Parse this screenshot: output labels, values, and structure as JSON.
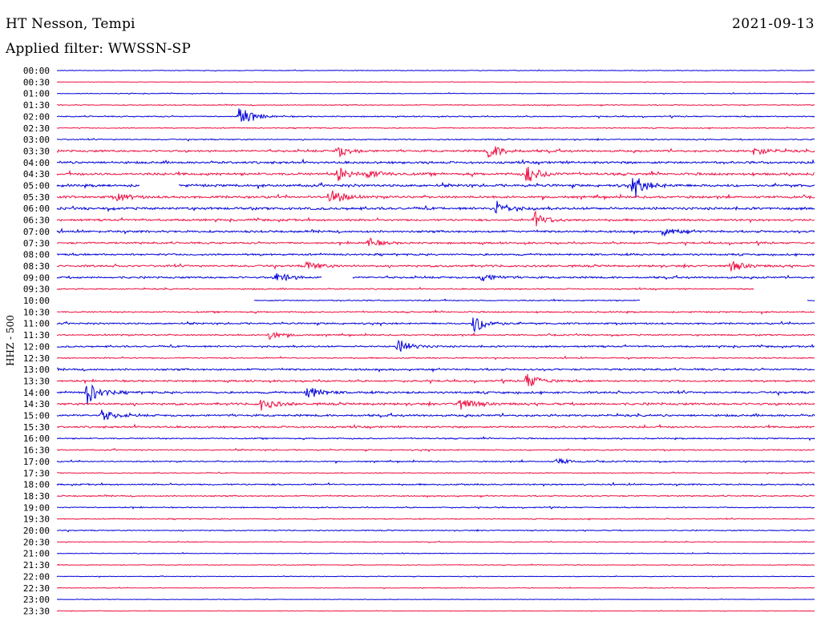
{
  "header": {
    "station": "HT Nesson, Tempi",
    "date": "2021-09-13",
    "filter": "Applied filter: WWSSN-SP"
  },
  "chart_data": {
    "type": "line",
    "title": "HT Nesson, Tempi",
    "subtitle": "Applied filter: WWSSN-SP",
    "ylabel": "HHZ - 500",
    "grid": false,
    "colors": [
      "#0000d8",
      "#ee1144"
    ],
    "times": [
      "00:00",
      "00:30",
      "01:00",
      "01:30",
      "02:00",
      "02:30",
      "03:00",
      "03:30",
      "04:00",
      "04:30",
      "05:00",
      "05:30",
      "06:00",
      "06:30",
      "07:00",
      "07:30",
      "08:00",
      "08:30",
      "09:00",
      "09:30",
      "10:00",
      "10:30",
      "11:00",
      "11:30",
      "12:00",
      "12:30",
      "13:00",
      "13:30",
      "14:00",
      "14:30",
      "15:00",
      "15:30",
      "16:00",
      "16:30",
      "17:00",
      "17:30",
      "18:00",
      "18:30",
      "19:00",
      "19:30",
      "20:00",
      "20:30",
      "21:00",
      "21:30",
      "22:00",
      "22:30",
      "23:00",
      "23:30"
    ],
    "noise": [
      0.3,
      0.3,
      0.35,
      0.45,
      0.55,
      0.5,
      0.55,
      1.0,
      1.1,
      1.2,
      1.2,
      1.1,
      1.2,
      1.0,
      1.0,
      0.9,
      0.9,
      1.0,
      0.9,
      0.6,
      0.55,
      0.7,
      0.8,
      0.7,
      0.8,
      0.6,
      0.9,
      0.9,
      1.0,
      1.1,
      1.0,
      0.9,
      0.6,
      0.6,
      0.6,
      0.45,
      0.7,
      0.6,
      0.5,
      0.5,
      0.5,
      0.4,
      0.35,
      0.35,
      0.3,
      0.3,
      0.25,
      0.25
    ],
    "events": [
      {
        "row": 4,
        "x": 0.24,
        "amp": 14
      },
      {
        "row": 7,
        "x": 0.37,
        "amp": 8
      },
      {
        "row": 7,
        "x": 0.57,
        "amp": 10
      },
      {
        "row": 7,
        "x": 0.92,
        "amp": 6
      },
      {
        "row": 9,
        "x": 0.37,
        "amp": 9
      },
      {
        "row": 9,
        "x": 0.41,
        "amp": 5
      },
      {
        "row": 9,
        "x": 0.62,
        "amp": 12
      },
      {
        "row": 10,
        "x": 0.76,
        "amp": 14
      },
      {
        "row": 11,
        "x": 0.36,
        "amp": 12
      },
      {
        "row": 11,
        "x": 0.08,
        "amp": 5
      },
      {
        "row": 12,
        "x": 0.58,
        "amp": 9
      },
      {
        "row": 13,
        "x": 0.63,
        "amp": 9
      },
      {
        "row": 14,
        "x": 0.8,
        "amp": 6
      },
      {
        "row": 15,
        "x": 0.41,
        "amp": 6
      },
      {
        "row": 17,
        "x": 0.33,
        "amp": 6
      },
      {
        "row": 17,
        "x": 0.89,
        "amp": 6
      },
      {
        "row": 18,
        "x": 0.29,
        "amp": 7
      },
      {
        "row": 18,
        "x": 0.56,
        "amp": 6
      },
      {
        "row": 22,
        "x": 0.55,
        "amp": 12
      },
      {
        "row": 23,
        "x": 0.28,
        "amp": 5
      },
      {
        "row": 24,
        "x": 0.45,
        "amp": 9
      },
      {
        "row": 27,
        "x": 0.62,
        "amp": 10
      },
      {
        "row": 28,
        "x": 0.04,
        "amp": 14
      },
      {
        "row": 28,
        "x": 0.33,
        "amp": 9
      },
      {
        "row": 29,
        "x": 0.27,
        "amp": 8
      },
      {
        "row": 29,
        "x": 0.53,
        "amp": 8
      },
      {
        "row": 30,
        "x": 0.06,
        "amp": 7
      },
      {
        "row": 34,
        "x": 0.66,
        "amp": 4
      }
    ],
    "gaps": [
      {
        "row": 10,
        "from": 0.11,
        "to": 0.16
      },
      {
        "row": 18,
        "from": 0.35,
        "to": 0.39
      },
      {
        "row": 19,
        "from": 0.92,
        "to": 1.0
      },
      {
        "row": 20,
        "from": 0.0,
        "to": 0.26
      },
      {
        "row": 20,
        "from": 0.77,
        "to": 0.99
      }
    ]
  }
}
